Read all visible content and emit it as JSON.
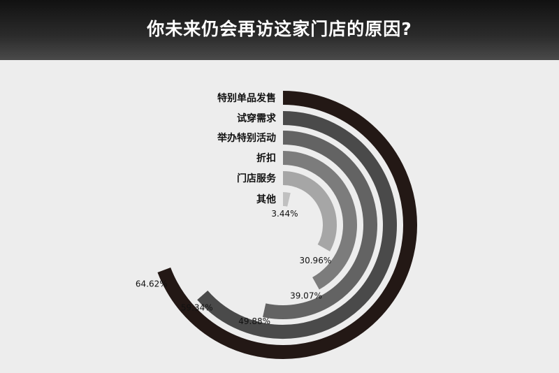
{
  "title": "你未来仍会再访这家门店的原因?",
  "chart_data": {
    "type": "radial-bar",
    "title": "你未来仍会再访这家门店的原因?",
    "unit": "%",
    "max": 100,
    "categories": [
      "特别单品发售",
      "试穿需求",
      "举办特别活动",
      "折扣",
      "门店服务",
      "其他"
    ],
    "values": [
      64.62,
      59.34,
      49.88,
      39.07,
      30.96,
      3.44
    ],
    "value_labels": [
      "64.62%",
      "59.34%",
      "49.88%",
      "39.07%",
      "30.96%",
      "3.44%"
    ],
    "colors": [
      "#231815",
      "#4a4a4a",
      "#636363",
      "#7c7c7c",
      "#a6a6a6",
      "#c0c0c0"
    ]
  }
}
